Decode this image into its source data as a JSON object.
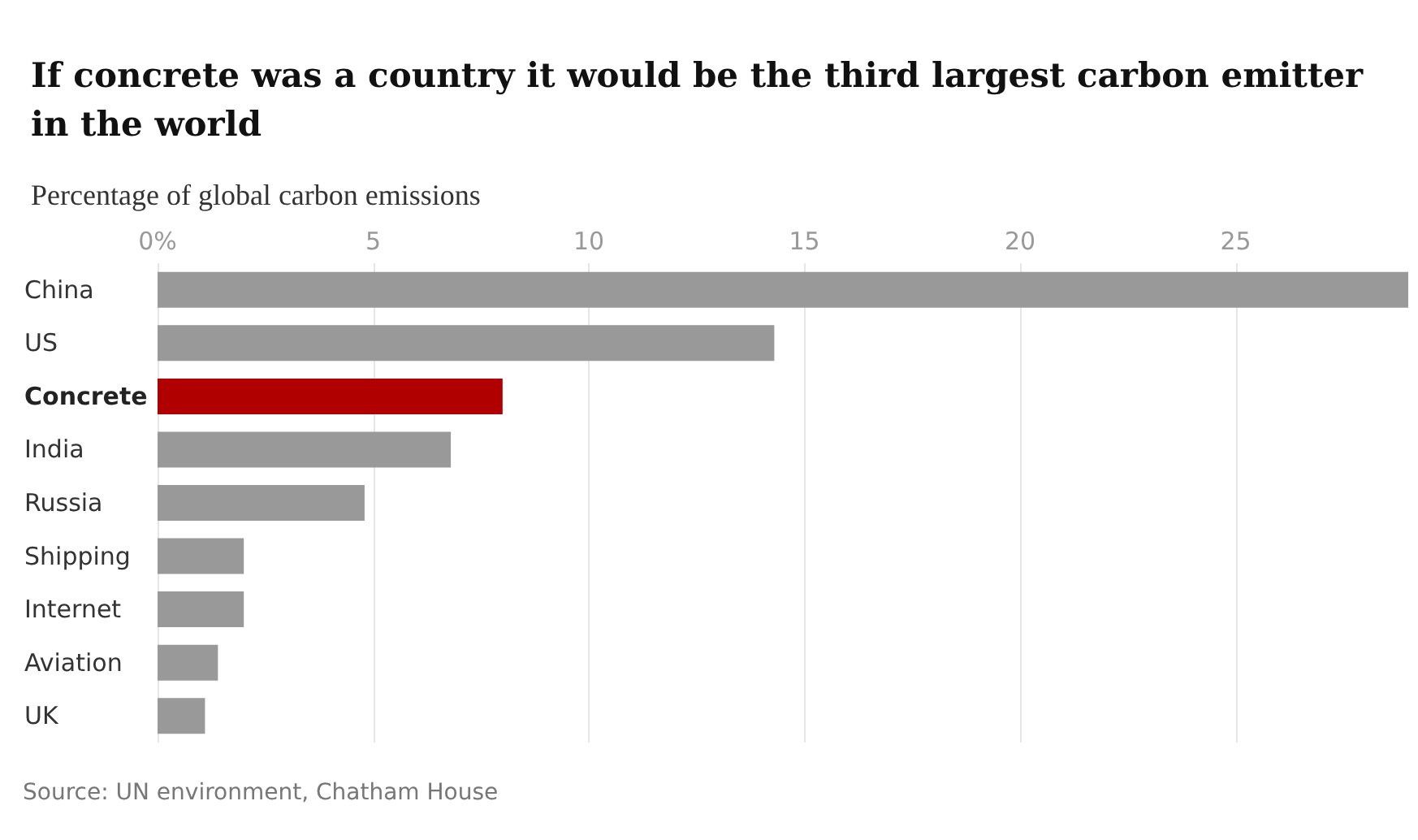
{
  "chart_data": {
    "type": "bar",
    "orientation": "horizontal",
    "title": "If concrete was a country it would be the third largest carbon emitter in the world",
    "subtitle": "Percentage of global carbon emissions",
    "categories": [
      "China",
      "US",
      "Concrete",
      "India",
      "Russia",
      "Shipping",
      "Internet",
      "Aviation",
      "UK"
    ],
    "values": [
      29,
      14.3,
      8,
      6.8,
      4.8,
      2,
      2,
      1.4,
      1.1
    ],
    "colors": [
      "#999999",
      "#999999",
      "#b00000",
      "#999999",
      "#999999",
      "#999999",
      "#999999",
      "#999999",
      "#999999"
    ],
    "xlim": [
      0,
      29
    ],
    "xticks": [
      {
        "value": 0,
        "label": "0%"
      },
      5,
      10,
      15,
      20,
      25
    ],
    "grid": "x",
    "annotations": [
      "Source: UN environment, Chatham House"
    ]
  }
}
